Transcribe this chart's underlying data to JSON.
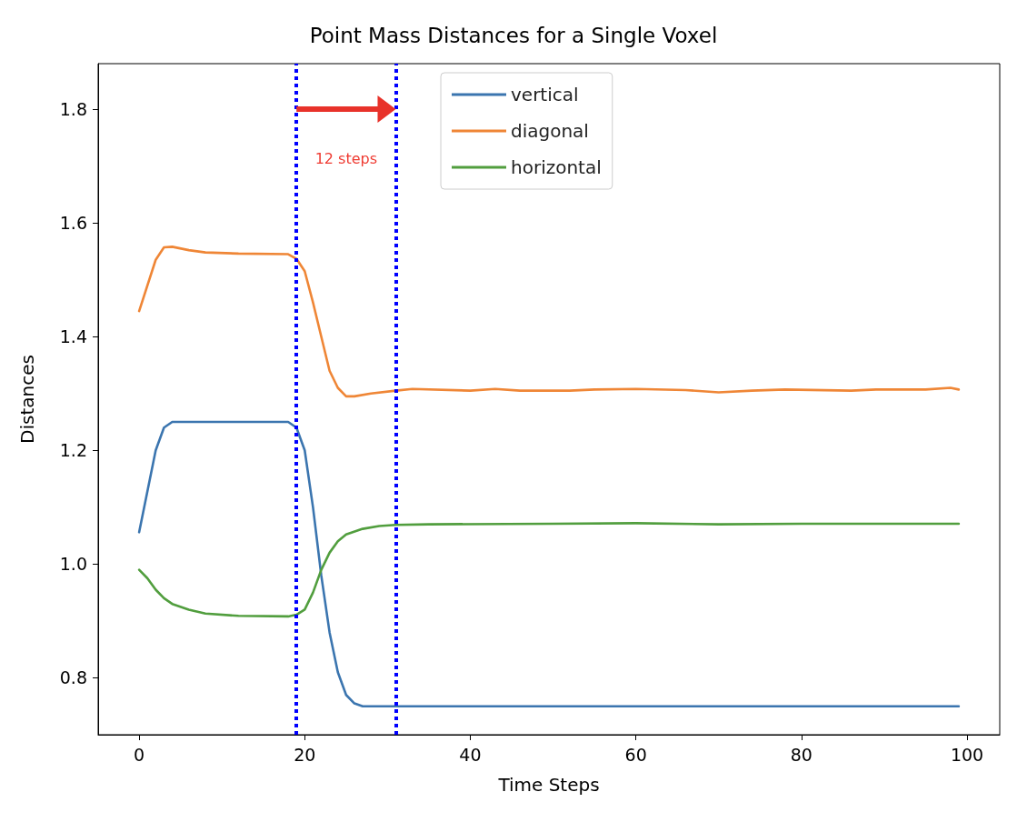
{
  "chart_data": {
    "type": "line",
    "title": "Point Mass Distances for a Single Voxel",
    "xlabel": "Time Steps",
    "ylabel": "Distances",
    "xlim": [
      -4.95,
      103.95
    ],
    "xticks": [
      0,
      20,
      40,
      60,
      80,
      100
    ],
    "ylim": [
      0.7,
      1.88
    ],
    "yticks": [
      0.8,
      {
        "value": 1,
        "label": "1.0"
      },
      1.2,
      1.4,
      1.6,
      1.8
    ],
    "grid": false,
    "legend": "top",
    "marker": "none",
    "line_style": "solid",
    "series": [
      {
        "name": "vertical",
        "color": "#3b75af",
        "x": [
          0,
          2,
          3,
          4,
          18,
          19,
          20,
          21,
          22,
          23,
          24,
          25,
          26,
          27,
          99
        ],
        "values": [
          1.056,
          1.2,
          1.24,
          1.25,
          1.25,
          1.24,
          1.2,
          1.1,
          0.98,
          0.88,
          0.81,
          0.77,
          0.755,
          0.75,
          0.75
        ]
      },
      {
        "name": "diagonal",
        "color": "#ef8636",
        "x": [
          0,
          2,
          3,
          4,
          6,
          8,
          12,
          18,
          19,
          20,
          21,
          22,
          23,
          24,
          25,
          26,
          28,
          31,
          33,
          40,
          43,
          46,
          52,
          55,
          60,
          66,
          70,
          74,
          78,
          86,
          89,
          95,
          98,
          99
        ],
        "values": [
          1.445,
          1.535,
          1.557,
          1.558,
          1.552,
          1.548,
          1.546,
          1.545,
          1.537,
          1.515,
          1.46,
          1.4,
          1.34,
          1.31,
          1.295,
          1.295,
          1.3,
          1.305,
          1.308,
          1.305,
          1.308,
          1.305,
          1.305,
          1.307,
          1.308,
          1.306,
          1.302,
          1.305,
          1.307,
          1.305,
          1.307,
          1.307,
          1.31,
          1.307
        ]
      },
      {
        "name": "horizontal",
        "color": "#519e3e",
        "x": [
          0,
          1,
          2,
          3,
          4,
          6,
          8,
          12,
          18,
          19,
          20,
          21,
          22,
          23,
          24,
          25,
          27,
          29,
          31,
          35,
          50,
          60,
          70,
          80,
          90,
          99
        ],
        "values": [
          0.99,
          0.975,
          0.955,
          0.94,
          0.93,
          0.92,
          0.913,
          0.909,
          0.908,
          0.911,
          0.92,
          0.95,
          0.99,
          1.02,
          1.04,
          1.052,
          1.062,
          1.067,
          1.069,
          1.07,
          1.071,
          1.072,
          1.07,
          1.071,
          1.071,
          1.071
        ]
      }
    ],
    "ref_lines": [
      {
        "axis": "x",
        "value": 19,
        "color": "#0000ff",
        "line_style": "dotted"
      },
      {
        "axis": "x",
        "value": 31,
        "color": "#0000ff",
        "line_style": "dotted"
      }
    ],
    "annotations": [
      "12 steps"
    ]
  }
}
